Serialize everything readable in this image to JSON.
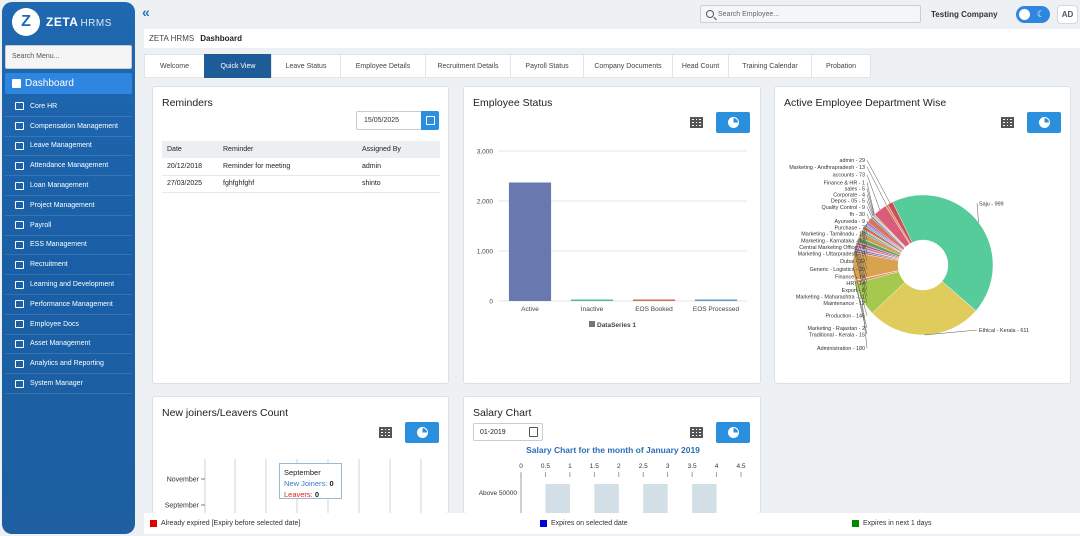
{
  "brand": {
    "logo_letter": "Z",
    "name": "ZETA",
    "suffix": "HRMS"
  },
  "sidebar": {
    "search_placeholder": "Search Menu...",
    "active_label": "Dashboard",
    "items": [
      {
        "label": "Core HR",
        "icon": "person-icon"
      },
      {
        "label": "Compensation Management",
        "icon": "document-icon"
      },
      {
        "label": "Leave Management",
        "icon": "calendar-icon"
      },
      {
        "label": "Attendance Management",
        "icon": "person-clock-icon"
      },
      {
        "label": "Loan Management",
        "icon": "monitor-icon"
      },
      {
        "label": "Project Management",
        "icon": "clipboard-icon"
      },
      {
        "label": "Payroll",
        "icon": "payroll-icon"
      },
      {
        "label": "ESS Management",
        "icon": "ess-icon"
      },
      {
        "label": "Recruitment",
        "icon": "recruitment-icon"
      },
      {
        "label": "Learning and Development",
        "icon": "learning-icon"
      },
      {
        "label": "Performance Management",
        "icon": "performance-icon"
      },
      {
        "label": "Employee Docs",
        "icon": "docs-icon"
      },
      {
        "label": "Asset Management",
        "icon": "asset-icon"
      },
      {
        "label": "Analytics and Reporting",
        "icon": "analytics-icon"
      },
      {
        "label": "System Manager",
        "icon": "system-icon"
      }
    ]
  },
  "topbar": {
    "search_placeholder": "Search Employee...",
    "company": "Testing Company",
    "avatar_initials": "AD"
  },
  "breadcrumb": {
    "root": "ZETA HRMS",
    "current": "Dashboard"
  },
  "tabs": [
    "Welcome",
    "Quick View",
    "Leave Status",
    "Employee Details",
    "Recruitment Details",
    "Payroll Status",
    "Company Documents",
    "Head Count",
    "Training Calendar",
    "Probation"
  ],
  "active_tab": "Quick View",
  "reminders": {
    "title": "Reminders",
    "date": "15/05/2025",
    "columns": [
      "Date",
      "Reminder",
      "Assigned By"
    ],
    "rows": [
      [
        "20/12/2018",
        "Reminder for meeting",
        "admin"
      ],
      [
        "27/03/2025",
        "fghfghfghf",
        "shinto"
      ]
    ]
  },
  "employee_status": {
    "title": "Employee Status"
  },
  "dept": {
    "title": "Active Employee Department Wise"
  },
  "joiners": {
    "title": "New joiners/Leavers Count",
    "tooltip": {
      "month": "September",
      "joiners_label": "New Joiners:",
      "joiners_value": "0",
      "leavers_label": "Leavers:",
      "leavers_value": "0"
    }
  },
  "salary": {
    "title": "Salary Chart",
    "month": "01-2019"
  },
  "footer": {
    "legend": [
      {
        "label": "Already expired [Expiry before selected date]",
        "color": "#e00000"
      },
      {
        "label": "Expires on selected date",
        "color": "#0000dd"
      },
      {
        "label": "Expires in next 1 days",
        "color": "#008800"
      }
    ]
  },
  "chart_data": [
    {
      "type": "bar",
      "title": "",
      "categories": [
        "Active",
        "Inactive",
        "EOS Booked",
        "EOS Processed"
      ],
      "series": [
        {
          "name": "DataSeries 1",
          "values": [
            2370,
            20,
            20,
            5
          ]
        }
      ],
      "colors": [
        "#6a78b0",
        "#4fbf9f",
        "#d66a5a",
        "#5d9bd0"
      ],
      "ylim": [
        0,
        3000
      ],
      "yticks": [
        "0",
        "1,000",
        "2,000",
        "3,000"
      ],
      "grid": true,
      "legend": "bottom"
    },
    {
      "type": "pie",
      "title": "",
      "series": [
        {
          "name": "Saju",
          "value": 999,
          "color": "#55cc99"
        },
        {
          "name": "Ethical - Kerala",
          "value": 611,
          "color": "#dfcc5c"
        },
        {
          "name": "Administration",
          "value": 180,
          "color": "#a5c84f"
        },
        {
          "name": "Traditional - Kerala",
          "value": 15,
          "color": "#d98a5c"
        },
        {
          "name": "Marketing - Rajastan",
          "value": 2,
          "color": "#c85d8a"
        },
        {
          "name": "Production",
          "value": 146,
          "color": "#d9a24f"
        },
        {
          "name": "Maintenance",
          "value": 12,
          "color": "#c86e6e"
        },
        {
          "name": "Marketing - Maharashtra",
          "value": 11,
          "color": "#7c6cc0"
        },
        {
          "name": "Export",
          "value": 6,
          "color": "#5ca3d8"
        },
        {
          "name": "HR",
          "value": 14,
          "color": "#e0735c"
        },
        {
          "name": "Finance",
          "value": 14,
          "color": "#aa55aa"
        },
        {
          "name": "Generic - Logistics",
          "value": 26,
          "color": "#6a9e5c"
        },
        {
          "name": "Dubai",
          "value": 32,
          "color": "#c8a05c"
        },
        {
          "name": "Marketing - Uttarpradesh",
          "value": 9,
          "color": "#5c7ec8"
        },
        {
          "name": "Central Marketing Office",
          "value": 8,
          "color": "#9bc85c"
        },
        {
          "name": "Marketing - Karnataka",
          "value": 17,
          "color": "#d1665c"
        },
        {
          "name": "Marketing - Tamilnadu",
          "value": 10,
          "color": "#5cb8c8"
        },
        {
          "name": "Purchase",
          "value": 7,
          "color": "#c85ca0"
        },
        {
          "name": "Ayurveda",
          "value": 9,
          "color": "#8c5cc8"
        },
        {
          "name": "fh",
          "value": 30,
          "color": "#d8735c"
        },
        {
          "name": "Quality Control",
          "value": 9,
          "color": "#5c8ac8"
        },
        {
          "name": "Depos - 05",
          "value": 5,
          "color": "#c8c05c"
        },
        {
          "name": "Corporate",
          "value": 4,
          "color": "#5cc8a0"
        },
        {
          "name": "sales",
          "value": 5,
          "color": "#c8705c"
        },
        {
          "name": "Finance & HR",
          "value": 1,
          "color": "#705cc8"
        },
        {
          "name": "accounts",
          "value": 73,
          "color": "#d95c7a"
        },
        {
          "name": "Marketing - Andhrapradesh",
          "value": 13,
          "color": "#e08a5c"
        },
        {
          "name": "admin",
          "value": 29,
          "color": "#c8505c"
        }
      ]
    },
    {
      "type": "bar",
      "title": "",
      "orientation": "horizontal",
      "categories": [
        "November",
        "September"
      ],
      "series": [
        {
          "name": "New Joiners",
          "values": [
            0,
            0
          ]
        },
        {
          "name": "Leavers",
          "values": [
            0,
            0
          ]
        }
      ]
    },
    {
      "type": "bar",
      "title": "Salary Chart for the month of January 2019",
      "orientation": "horizontal",
      "categories": [
        "Above 50000"
      ],
      "xticks": [
        "0",
        "0.5",
        "1",
        "1.5",
        "2",
        "2.5",
        "3",
        "3.5",
        "4",
        "4.5"
      ],
      "xlim": [
        0,
        4.5
      ]
    }
  ]
}
